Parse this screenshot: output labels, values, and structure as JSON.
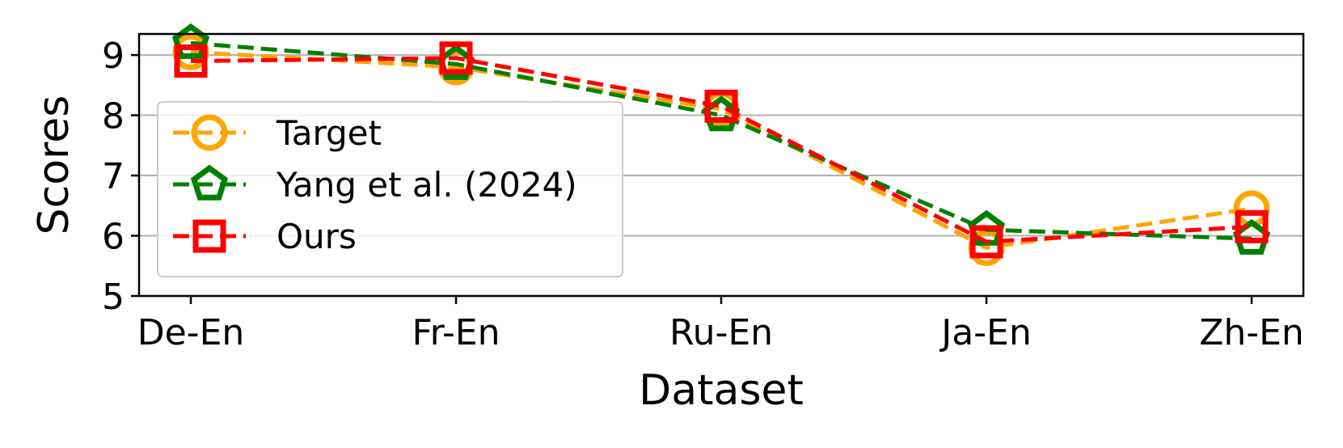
{
  "chart_data": {
    "type": "line",
    "xlabel": "Dataset",
    "ylabel": "Scores",
    "categories": [
      "De-En",
      "Fr-En",
      "Ru-En",
      "Ja-En",
      "Zh-En"
    ],
    "ylim": [
      5,
      9.35
    ],
    "yticks": [
      "5",
      "6",
      "7",
      "8",
      "9"
    ],
    "grid": "horizontal",
    "legend_position": "center-left",
    "series": [
      {
        "name": "Target",
        "marker": "circle",
        "color": "#ffa500",
        "values": [
          9.05,
          8.8,
          8.1,
          5.8,
          6.45
        ]
      },
      {
        "name": "Yang et al. (2024)",
        "marker": "pentagon",
        "color": "#008000",
        "values": [
          9.2,
          8.85,
          8.0,
          6.1,
          5.95
        ]
      },
      {
        "name": "Ours",
        "marker": "square",
        "color": "#ff0000",
        "values": [
          8.9,
          8.95,
          8.15,
          5.9,
          6.15
        ]
      }
    ]
  }
}
